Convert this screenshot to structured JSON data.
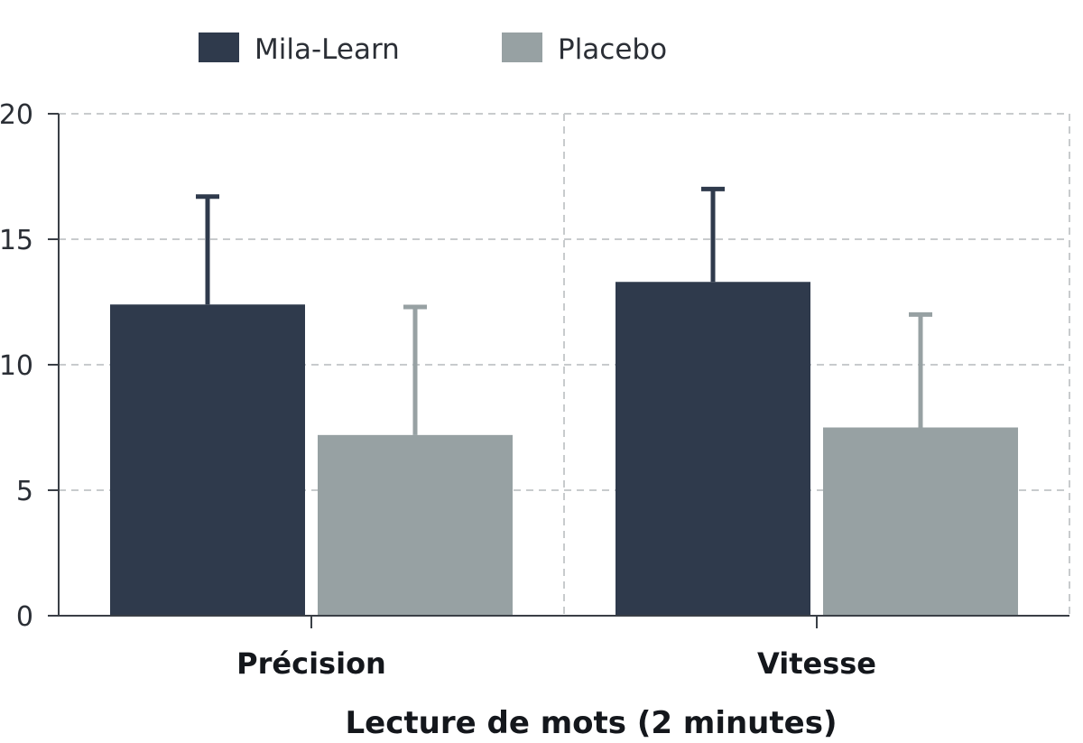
{
  "chart_data": {
    "type": "bar",
    "categories": [
      "Précision",
      "Vitesse"
    ],
    "series": [
      {
        "name": "Mila-Learn",
        "color": "#2f3a4c",
        "errorbar_color": "#2f3a4c",
        "values": [
          12.4,
          13.3
        ],
        "error_upper": [
          16.7,
          17.0
        ]
      },
      {
        "name": "Placebo",
        "color": "#97a1a3",
        "errorbar_color": "#97a1a3",
        "values": [
          7.2,
          7.5
        ],
        "error_upper": [
          12.3,
          12.0
        ]
      }
    ],
    "ylim": [
      0,
      20
    ],
    "yticks": [
      0,
      5,
      10,
      15,
      20
    ],
    "xlabel": "Lecture de mots (2 minutes)",
    "ylabel": "",
    "grid": true,
    "legend_position": "top-left"
  }
}
